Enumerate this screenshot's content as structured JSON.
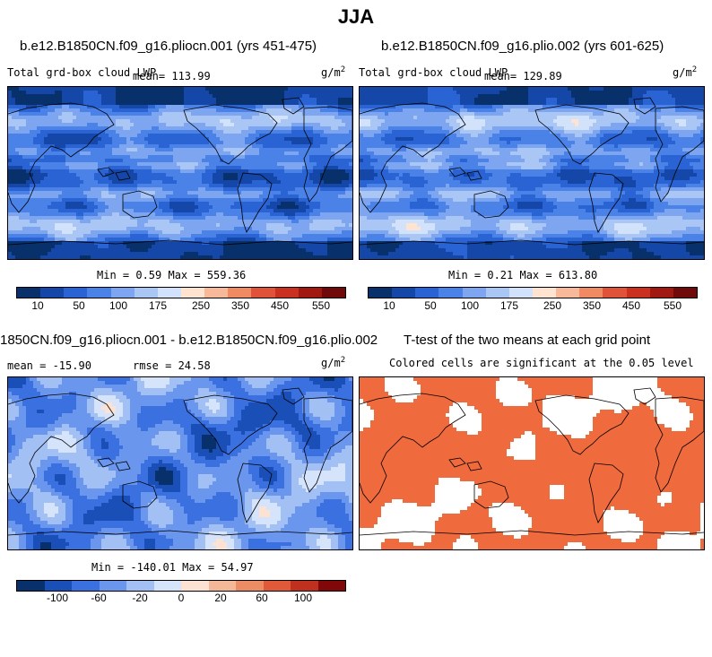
{
  "title": "JJA",
  "units": "g/m",
  "units_exp": "2",
  "panels": {
    "p1": {
      "case": "b.e12.B1850CN.f09_g16.pliocn.001 (yrs 451-475)",
      "variable": "Total grd-box cloud LWP",
      "mean": "mean= 113.99",
      "minmax": "Min =   0.59 Max = 559.36"
    },
    "p2": {
      "case": "b.e12.B1850CN.f09_g16.plio.002 (yrs 601-625)",
      "variable": "Total grd-box cloud LWP",
      "mean": "mean= 129.89",
      "minmax": "Min =   0.21 Max = 613.80"
    },
    "p3": {
      "case": "1850CN.f09_g16.pliocn.001 - b.e12.B1850CN.f09_g16.plio.002",
      "mean": "mean = -15.90",
      "rmse": "rmse =  24.58",
      "minmax": "Min = -140.01 Max =  54.97"
    },
    "p4": {
      "case": "T-test of the two means at each grid point",
      "subtitle": "Colored cells are significant at the 0.05 level"
    }
  },
  "chart_data": [
    {
      "type": "heatmap",
      "title": "b.e12.B1850CN.f09_g16.pliocn.001 (yrs 451-475)",
      "variable": "Total grd-box cloud LWP",
      "units": "g/m2",
      "mean": 113.99,
      "min": 0.59,
      "max": 559.36,
      "colorbar_ticks": [
        "10",
        "50",
        "100",
        "175",
        "250",
        "350",
        "450",
        "550"
      ]
    },
    {
      "type": "heatmap",
      "title": "b.e12.B1850CN.f09_g16.plio.002 (yrs 601-625)",
      "variable": "Total grd-box cloud LWP",
      "units": "g/m2",
      "mean": 129.89,
      "min": 0.21,
      "max": 613.8,
      "colorbar_ticks": [
        "10",
        "50",
        "100",
        "175",
        "250",
        "350",
        "450",
        "550"
      ]
    },
    {
      "type": "heatmap",
      "title": "1850CN.f09_g16.pliocn.001 - b.e12.B1850CN.f09_g16.plio.002",
      "units": "g/m2",
      "mean": -15.9,
      "rmse": 24.58,
      "min": -140.01,
      "max": 54.97,
      "colorbar_ticks": [
        "-100",
        "-60",
        "-20",
        "0",
        "20",
        "60",
        "100"
      ]
    },
    {
      "type": "heatmap",
      "title": "T-test of the two means at each grid point",
      "subtitle": "Colored cells are significant at the 0.05 level"
    }
  ],
  "colors": {
    "scale": [
      "#08306b",
      "#1547a8",
      "#2a64d4",
      "#4a82e8",
      "#7ea6f0",
      "#aac6f5",
      "#d2e2fa",
      "#fde3d0",
      "#f7b99a",
      "#ef8a62",
      "#e0533a",
      "#c93020",
      "#a01810",
      "#700a0a"
    ],
    "ttest": "#ef6a3c",
    "land": "#000000"
  }
}
